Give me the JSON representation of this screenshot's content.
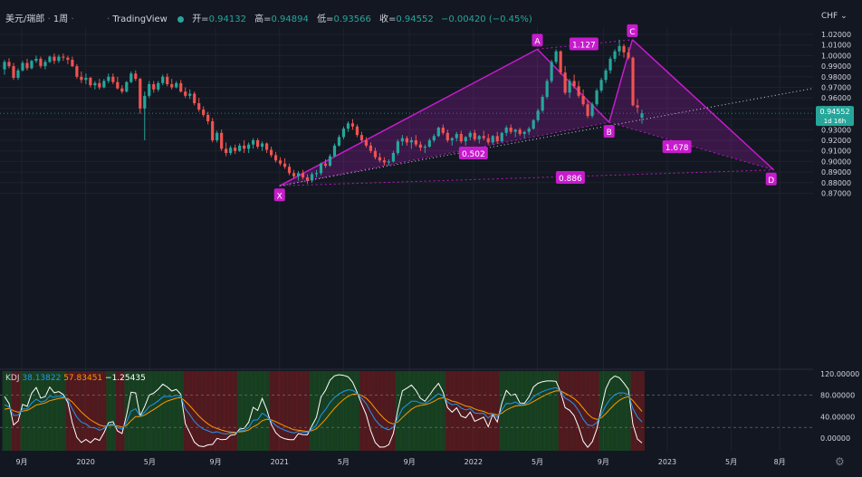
{
  "header": {
    "symbol": "美元/瑞郎",
    "interval": "1周",
    "provider": "TradingView",
    "open_label": "开=",
    "open": "0.94132",
    "high_label": "高=",
    "high": "0.94894",
    "low_label": "低=",
    "low": "0.93566",
    "close_label": "收=",
    "close": "0.94552",
    "change": "−0.00420 (−0.45%)"
  },
  "currency_label": "CHF",
  "price_axis": {
    "ticks": [
      "1.02000",
      "1.01000",
      "1.00000",
      "0.99000",
      "0.98000",
      "0.97000",
      "0.96000",
      "0.95000",
      "0.94000",
      "0.93000",
      "0.92000",
      "0.91000",
      "0.90000",
      "0.89000",
      "0.88000",
      "0.87000"
    ],
    "current_price": "0.94552",
    "countdown": "1d 16h"
  },
  "kdj": {
    "name": "KDJ",
    "k": "38.13822",
    "d": "57.83451",
    "j": "−1.25435",
    "axis_ticks": [
      "120.00000",
      "80.00000",
      "40.00000",
      "0.00000"
    ]
  },
  "time_axis": [
    "9月",
    "2020",
    "5月",
    "9月",
    "2021",
    "5月",
    "9月",
    "2022",
    "5月",
    "9月",
    "2023",
    "5月",
    "8月"
  ],
  "pattern": {
    "points": [
      {
        "label": "X",
        "t": 2021.0,
        "price": 0.877
      },
      {
        "label": "A",
        "t": 2022.33,
        "price": 1.006
      },
      {
        "label": "B",
        "t": 2022.7,
        "price": 0.937
      },
      {
        "label": "C",
        "t": 2022.82,
        "price": 1.015
      },
      {
        "label": "D",
        "t": 2023.55,
        "price": 0.892
      }
    ],
    "ratios": [
      {
        "label": "1.127",
        "t": 2022.57,
        "price": 1.011
      },
      {
        "label": "0.502",
        "t": 2022.0,
        "price": 0.908
      },
      {
        "label": "1.678",
        "t": 2023.05,
        "price": 0.914
      },
      {
        "label": "0.886",
        "t": 2022.5,
        "price": 0.885
      }
    ]
  },
  "colors": {
    "background": "#131722",
    "up": "#26a69a",
    "down": "#ef5350",
    "pattern": "#c61ccc",
    "label_bg": "#c61ccc",
    "k": "#2196f3",
    "d": "#ff9800",
    "j": "#ffffff"
  },
  "chart_data": {
    "type": "candlestick",
    "title": "美元/瑞郎 · 1周",
    "ylim": [
      0.865,
      1.027
    ],
    "candles_ohlc": [
      [
        0.987,
        0.996,
        0.982,
        0.994
      ],
      [
        0.994,
        0.9975,
        0.988,
        0.99
      ],
      [
        0.99,
        0.993,
        0.977,
        0.979
      ],
      [
        0.979,
        0.988,
        0.977,
        0.986
      ],
      [
        0.986,
        0.995,
        0.985,
        0.993
      ],
      [
        0.993,
        0.997,
        0.986,
        0.988
      ],
      [
        0.988,
        0.996,
        0.987,
        0.995
      ],
      [
        0.995,
        1.0,
        0.993,
        0.997
      ],
      [
        0.997,
        0.999,
        0.988,
        0.99
      ],
      [
        0.99,
        0.996,
        0.987,
        0.994
      ],
      [
        0.994,
        1.0,
        0.993,
        0.999
      ],
      [
        0.999,
        1.002,
        0.992,
        0.995
      ],
      [
        0.995,
        1.001,
        0.993,
        0.999
      ],
      [
        0.999,
        1.002,
        0.995,
        0.998
      ],
      [
        0.998,
        1.0,
        0.992,
        0.996
      ],
      [
        0.996,
        0.999,
        0.989,
        0.99
      ],
      [
        0.99,
        0.992,
        0.978,
        0.98
      ],
      [
        0.98,
        0.985,
        0.974,
        0.977
      ],
      [
        0.977,
        0.983,
        0.973,
        0.979
      ],
      [
        0.979,
        0.98,
        0.97,
        0.972
      ],
      [
        0.972,
        0.976,
        0.968,
        0.974
      ],
      [
        0.974,
        0.978,
        0.968,
        0.97
      ],
      [
        0.97,
        0.978,
        0.969,
        0.976
      ],
      [
        0.976,
        0.983,
        0.974,
        0.98
      ],
      [
        0.98,
        0.983,
        0.973,
        0.975
      ],
      [
        0.975,
        0.98,
        0.968,
        0.969
      ],
      [
        0.969,
        0.972,
        0.964,
        0.966
      ],
      [
        0.966,
        0.976,
        0.965,
        0.975
      ],
      [
        0.975,
        0.985,
        0.974,
        0.983
      ],
      [
        0.983,
        0.986,
        0.976,
        0.978
      ],
      [
        0.978,
        0.979,
        0.945,
        0.95
      ],
      [
        0.95,
        0.966,
        0.92,
        0.962
      ],
      [
        0.962,
        0.976,
        0.96,
        0.973
      ],
      [
        0.973,
        0.976,
        0.965,
        0.968
      ],
      [
        0.968,
        0.976,
        0.966,
        0.974
      ],
      [
        0.974,
        0.982,
        0.972,
        0.98
      ],
      [
        0.98,
        0.983,
        0.971,
        0.973
      ],
      [
        0.973,
        0.978,
        0.968,
        0.97
      ],
      [
        0.97,
        0.976,
        0.969,
        0.974
      ],
      [
        0.974,
        0.977,
        0.965,
        0.966
      ],
      [
        0.966,
        0.97,
        0.96,
        0.962
      ],
      [
        0.962,
        0.968,
        0.959,
        0.964
      ],
      [
        0.964,
        0.966,
        0.953,
        0.955
      ],
      [
        0.955,
        0.96,
        0.947,
        0.949
      ],
      [
        0.949,
        0.952,
        0.942,
        0.944
      ],
      [
        0.944,
        0.947,
        0.935,
        0.938
      ],
      [
        0.938,
        0.941,
        0.918,
        0.92
      ],
      [
        0.92,
        0.929,
        0.918,
        0.927
      ],
      [
        0.927,
        0.93,
        0.91,
        0.912
      ],
      [
        0.912,
        0.918,
        0.905,
        0.908
      ],
      [
        0.908,
        0.915,
        0.906,
        0.913
      ],
      [
        0.913,
        0.916,
        0.907,
        0.91
      ],
      [
        0.91,
        0.917,
        0.909,
        0.915
      ],
      [
        0.915,
        0.92,
        0.908,
        0.912
      ],
      [
        0.912,
        0.918,
        0.908,
        0.916
      ],
      [
        0.916,
        0.922,
        0.912,
        0.92
      ],
      [
        0.92,
        0.922,
        0.912,
        0.914
      ],
      [
        0.914,
        0.919,
        0.91,
        0.917
      ],
      [
        0.917,
        0.918,
        0.908,
        0.911
      ],
      [
        0.911,
        0.914,
        0.904,
        0.906
      ],
      [
        0.906,
        0.909,
        0.899,
        0.901
      ],
      [
        0.901,
        0.904,
        0.896,
        0.898
      ],
      [
        0.898,
        0.903,
        0.893,
        0.895
      ],
      [
        0.895,
        0.898,
        0.887,
        0.889
      ],
      [
        0.889,
        0.892,
        0.884,
        0.886
      ],
      [
        0.886,
        0.891,
        0.882,
        0.889
      ],
      [
        0.889,
        0.892,
        0.883,
        0.885
      ],
      [
        0.885,
        0.888,
        0.879,
        0.882
      ],
      [
        0.882,
        0.89,
        0.88,
        0.888
      ],
      [
        0.888,
        0.892,
        0.885,
        0.889
      ],
      [
        0.889,
        0.899,
        0.887,
        0.898
      ],
      [
        0.898,
        0.902,
        0.894,
        0.896
      ],
      [
        0.896,
        0.907,
        0.895,
        0.905
      ],
      [
        0.905,
        0.917,
        0.904,
        0.915
      ],
      [
        0.915,
        0.925,
        0.914,
        0.923
      ],
      [
        0.923,
        0.933,
        0.921,
        0.931
      ],
      [
        0.931,
        0.938,
        0.928,
        0.936
      ],
      [
        0.936,
        0.94,
        0.93,
        0.933
      ],
      [
        0.933,
        0.935,
        0.923,
        0.925
      ],
      [
        0.925,
        0.928,
        0.918,
        0.92
      ],
      [
        0.92,
        0.923,
        0.913,
        0.915
      ],
      [
        0.915,
        0.918,
        0.908,
        0.91
      ],
      [
        0.91,
        0.913,
        0.902,
        0.904
      ],
      [
        0.904,
        0.908,
        0.899,
        0.901
      ],
      [
        0.901,
        0.904,
        0.896,
        0.899
      ],
      [
        0.899,
        0.902,
        0.896,
        0.9
      ],
      [
        0.9,
        0.91,
        0.899,
        0.908
      ],
      [
        0.908,
        0.921,
        0.906,
        0.919
      ],
      [
        0.919,
        0.925,
        0.915,
        0.922
      ],
      [
        0.922,
        0.924,
        0.915,
        0.918
      ],
      [
        0.918,
        0.923,
        0.912,
        0.92
      ],
      [
        0.92,
        0.925,
        0.914,
        0.916
      ],
      [
        0.916,
        0.919,
        0.91,
        0.913
      ],
      [
        0.913,
        0.916,
        0.908,
        0.914
      ],
      [
        0.914,
        0.922,
        0.913,
        0.92
      ],
      [
        0.92,
        0.926,
        0.918,
        0.924
      ],
      [
        0.924,
        0.933,
        0.923,
        0.932
      ],
      [
        0.932,
        0.935,
        0.925,
        0.927
      ],
      [
        0.927,
        0.93,
        0.918,
        0.92
      ],
      [
        0.92,
        0.923,
        0.915,
        0.922
      ],
      [
        0.922,
        0.928,
        0.919,
        0.926
      ],
      [
        0.926,
        0.929,
        0.917,
        0.919
      ],
      [
        0.919,
        0.924,
        0.915,
        0.923
      ],
      [
        0.923,
        0.929,
        0.92,
        0.927
      ],
      [
        0.927,
        0.93,
        0.919,
        0.921
      ],
      [
        0.921,
        0.925,
        0.917,
        0.924
      ],
      [
        0.924,
        0.929,
        0.92,
        0.922
      ],
      [
        0.922,
        0.926,
        0.916,
        0.918
      ],
      [
        0.918,
        0.925,
        0.916,
        0.924
      ],
      [
        0.924,
        0.928,
        0.917,
        0.919
      ],
      [
        0.919,
        0.928,
        0.918,
        0.927
      ],
      [
        0.927,
        0.934,
        0.924,
        0.932
      ],
      [
        0.932,
        0.935,
        0.926,
        0.928
      ],
      [
        0.928,
        0.931,
        0.923,
        0.93
      ],
      [
        0.93,
        0.932,
        0.924,
        0.926
      ],
      [
        0.926,
        0.929,
        0.922,
        0.928
      ],
      [
        0.928,
        0.933,
        0.925,
        0.931
      ],
      [
        0.931,
        0.94,
        0.93,
        0.939
      ],
      [
        0.939,
        0.95,
        0.937,
        0.948
      ],
      [
        0.948,
        0.963,
        0.946,
        0.961
      ],
      [
        0.961,
        0.978,
        0.959,
        0.976
      ],
      [
        0.976,
        0.996,
        0.974,
        0.994
      ],
      [
        0.994,
        1.006,
        0.992,
        1.004
      ],
      [
        1.004,
        1.005,
        0.982,
        0.984
      ],
      [
        0.984,
        0.99,
        0.963,
        0.965
      ],
      [
        0.965,
        0.978,
        0.96,
        0.976
      ],
      [
        0.976,
        0.982,
        0.969,
        0.971
      ],
      [
        0.971,
        0.976,
        0.96,
        0.962
      ],
      [
        0.962,
        0.968,
        0.952,
        0.954
      ],
      [
        0.954,
        0.958,
        0.941,
        0.943
      ],
      [
        0.943,
        0.956,
        0.941,
        0.954
      ],
      [
        0.954,
        0.969,
        0.952,
        0.967
      ],
      [
        0.967,
        0.979,
        0.965,
        0.977
      ],
      [
        0.977,
        0.988,
        0.974,
        0.986
      ],
      [
        0.986,
        0.999,
        0.983,
        0.997
      ],
      [
        0.997,
        1.006,
        0.994,
        1.004
      ],
      [
        1.004,
        1.015,
        1.0,
        1.009
      ],
      [
        1.009,
        1.011,
        0.998,
        1.003
      ],
      [
        1.003,
        1.008,
        0.996,
        0.998
      ],
      [
        0.998,
        0.999,
        0.952,
        0.953
      ],
      [
        0.953,
        0.959,
        0.946,
        0.951
      ],
      [
        0.9413,
        0.9489,
        0.9357,
        0.9455
      ]
    ]
  }
}
